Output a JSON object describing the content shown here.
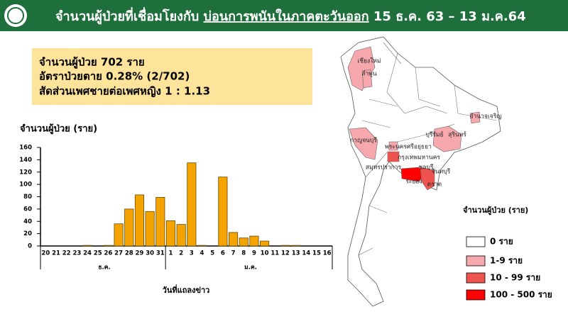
{
  "header": {
    "title_part1": "จำนวนผู้ป่วยที่เชื่อมโยงกับ",
    "title_part2": "บ่อนการพนันในภาคตะวันออก",
    "title_part3": "15 ธ.ค. 63 – 13 ม.ค.64"
  },
  "summary": [
    "จำนวนผู้ป่วย 702 ราย",
    "อัตราป่วยตาย 0.28% (2/702)",
    "สัดส่วนเพศชายต่อเพศหญิง 1 : 1.13"
  ],
  "chart_data": {
    "type": "bar",
    "y_label": "จำนวนผู้ป่วย (ราย)",
    "x_label": "วันที่แถลงข่าว",
    "categories": [
      "20",
      "21",
      "22",
      "23",
      "24",
      "25",
      "26",
      "27",
      "28",
      "29",
      "30",
      "31",
      "1",
      "2",
      "3",
      "4",
      "5",
      "6",
      "7",
      "8",
      "9",
      "10",
      "11",
      "12",
      "13",
      "14",
      "15",
      "16"
    ],
    "values": [
      0,
      0,
      0,
      0,
      1,
      0,
      1,
      36,
      60,
      83,
      56,
      79,
      41,
      35,
      135,
      1,
      0,
      112,
      22,
      13,
      16,
      8,
      0,
      1,
      1,
      0,
      0,
      0
    ],
    "month_labels": [
      "ธ.ค.",
      "ม.ค."
    ],
    "color": "#f5a300",
    "ylim": [
      0,
      160
    ],
    "yticks": [
      0,
      20,
      40,
      60,
      80,
      100,
      120,
      140,
      160
    ]
  },
  "map": {
    "provinces": [
      "เชียงใหม่",
      "ลำพูน",
      "กาญจนบุรี",
      "พระนครศรีอยุธยา",
      "กรุงเทพมหานคร",
      "สมุทรปราการ",
      "ชลบุรี",
      "จันทบุรี",
      "ระยอง",
      "ตราด",
      "บุรีรัมย์",
      "สุรินทร์",
      "อำนาจเจริญ"
    ],
    "legend_title": "จำนวนผู้ป่วย (ราย)",
    "legend": [
      {
        "label": "0 ราย",
        "color": "#ffffff"
      },
      {
        "label": "1-9 ราย",
        "color": "#f7a8ad"
      },
      {
        "label": "10 - 99 ราย",
        "color": "#ef5350"
      },
      {
        "label": "100 - 500 ราย",
        "color": "#ff0000"
      }
    ]
  }
}
